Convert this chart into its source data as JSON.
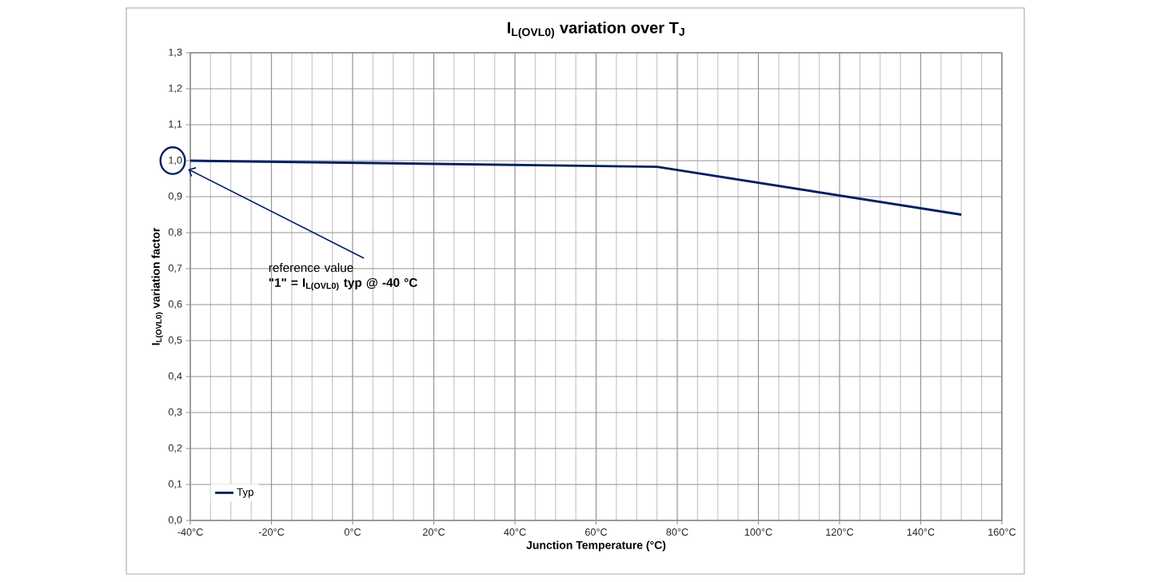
{
  "chart_data": {
    "type": "line",
    "title": "I$_{L(OVL0)}$ variation over T$_{J}$",
    "xlabel": "Junction Temperature (°C)",
    "ylabel": "I$_{L(OVL0)}$ variation factor",
    "x": [
      -40,
      75,
      150
    ],
    "series": [
      {
        "name": "Typ",
        "color": "#002060",
        "values": [
          1.0,
          0.983,
          0.85
        ]
      }
    ],
    "xlim": [
      -40,
      160
    ],
    "xticks": [
      {
        "value": -40,
        "label": "-40°C"
      },
      {
        "value": -35,
        "label": null
      },
      {
        "value": -30,
        "label": null
      },
      {
        "value": -25,
        "label": null
      },
      {
        "value": -20,
        "label": "-20°C"
      },
      {
        "value": -15,
        "label": null
      },
      {
        "value": -10,
        "label": null
      },
      {
        "value": -5,
        "label": null
      },
      {
        "value": 0,
        "label": "0°C"
      },
      {
        "value": 5,
        "label": null
      },
      {
        "value": 10,
        "label": null
      },
      {
        "value": 15,
        "label": null
      },
      {
        "value": 20,
        "label": "20°C"
      },
      {
        "value": 25,
        "label": null
      },
      {
        "value": 30,
        "label": null
      },
      {
        "value": 35,
        "label": null
      },
      {
        "value": 40,
        "label": "40°C"
      },
      {
        "value": 45,
        "label": null
      },
      {
        "value": 50,
        "label": null
      },
      {
        "value": 55,
        "label": null
      },
      {
        "value": 60,
        "label": "60°C"
      },
      {
        "value": 65,
        "label": null
      },
      {
        "value": 70,
        "label": null
      },
      {
        "value": 75,
        "label": null
      },
      {
        "value": 80,
        "label": "80°C"
      },
      {
        "value": 85,
        "label": null
      },
      {
        "value": 90,
        "label": null
      },
      {
        "value": 95,
        "label": null
      },
      {
        "value": 100,
        "label": "100°C"
      },
      {
        "value": 105,
        "label": null
      },
      {
        "value": 110,
        "label": null
      },
      {
        "value": 115,
        "label": null
      },
      {
        "value": 120,
        "label": "120°C"
      },
      {
        "value": 125,
        "label": null
      },
      {
        "value": 130,
        "label": null
      },
      {
        "value": 135,
        "label": null
      },
      {
        "value": 140,
        "label": "140°C"
      },
      {
        "value": 145,
        "label": null
      },
      {
        "value": 150,
        "label": null
      },
      {
        "value": 155,
        "label": null
      },
      {
        "value": 160,
        "label": "160°C"
      }
    ],
    "ylim": [
      0,
      1.3
    ],
    "yticks": [
      {
        "value": 0,
        "label": "0,0"
      },
      {
        "value": 0.1,
        "label": "0,1"
      },
      {
        "value": 0.2,
        "label": "0,2"
      },
      {
        "value": 0.3,
        "label": "0,3"
      },
      {
        "value": 0.4,
        "label": "0,4"
      },
      {
        "value": 0.5,
        "label": "0,5"
      },
      {
        "value": 0.6,
        "label": "0,6"
      },
      {
        "value": 0.7,
        "label": "0,7"
      },
      {
        "value": 0.8,
        "label": "0,8"
      },
      {
        "value": 0.9,
        "label": "0,9"
      },
      {
        "value": 1.0,
        "label": "1,0"
      },
      {
        "value": 1.1,
        "label": "1,1"
      },
      {
        "value": 1.2,
        "label": "1,2"
      },
      {
        "value": 1.3,
        "label": "1,3"
      }
    ],
    "annotations": [
      "reference value",
      "\"1\" = I$_{L(OVL0)}$ typ @ -40 °C"
    ],
    "grid": true,
    "legend": "bottom left"
  }
}
